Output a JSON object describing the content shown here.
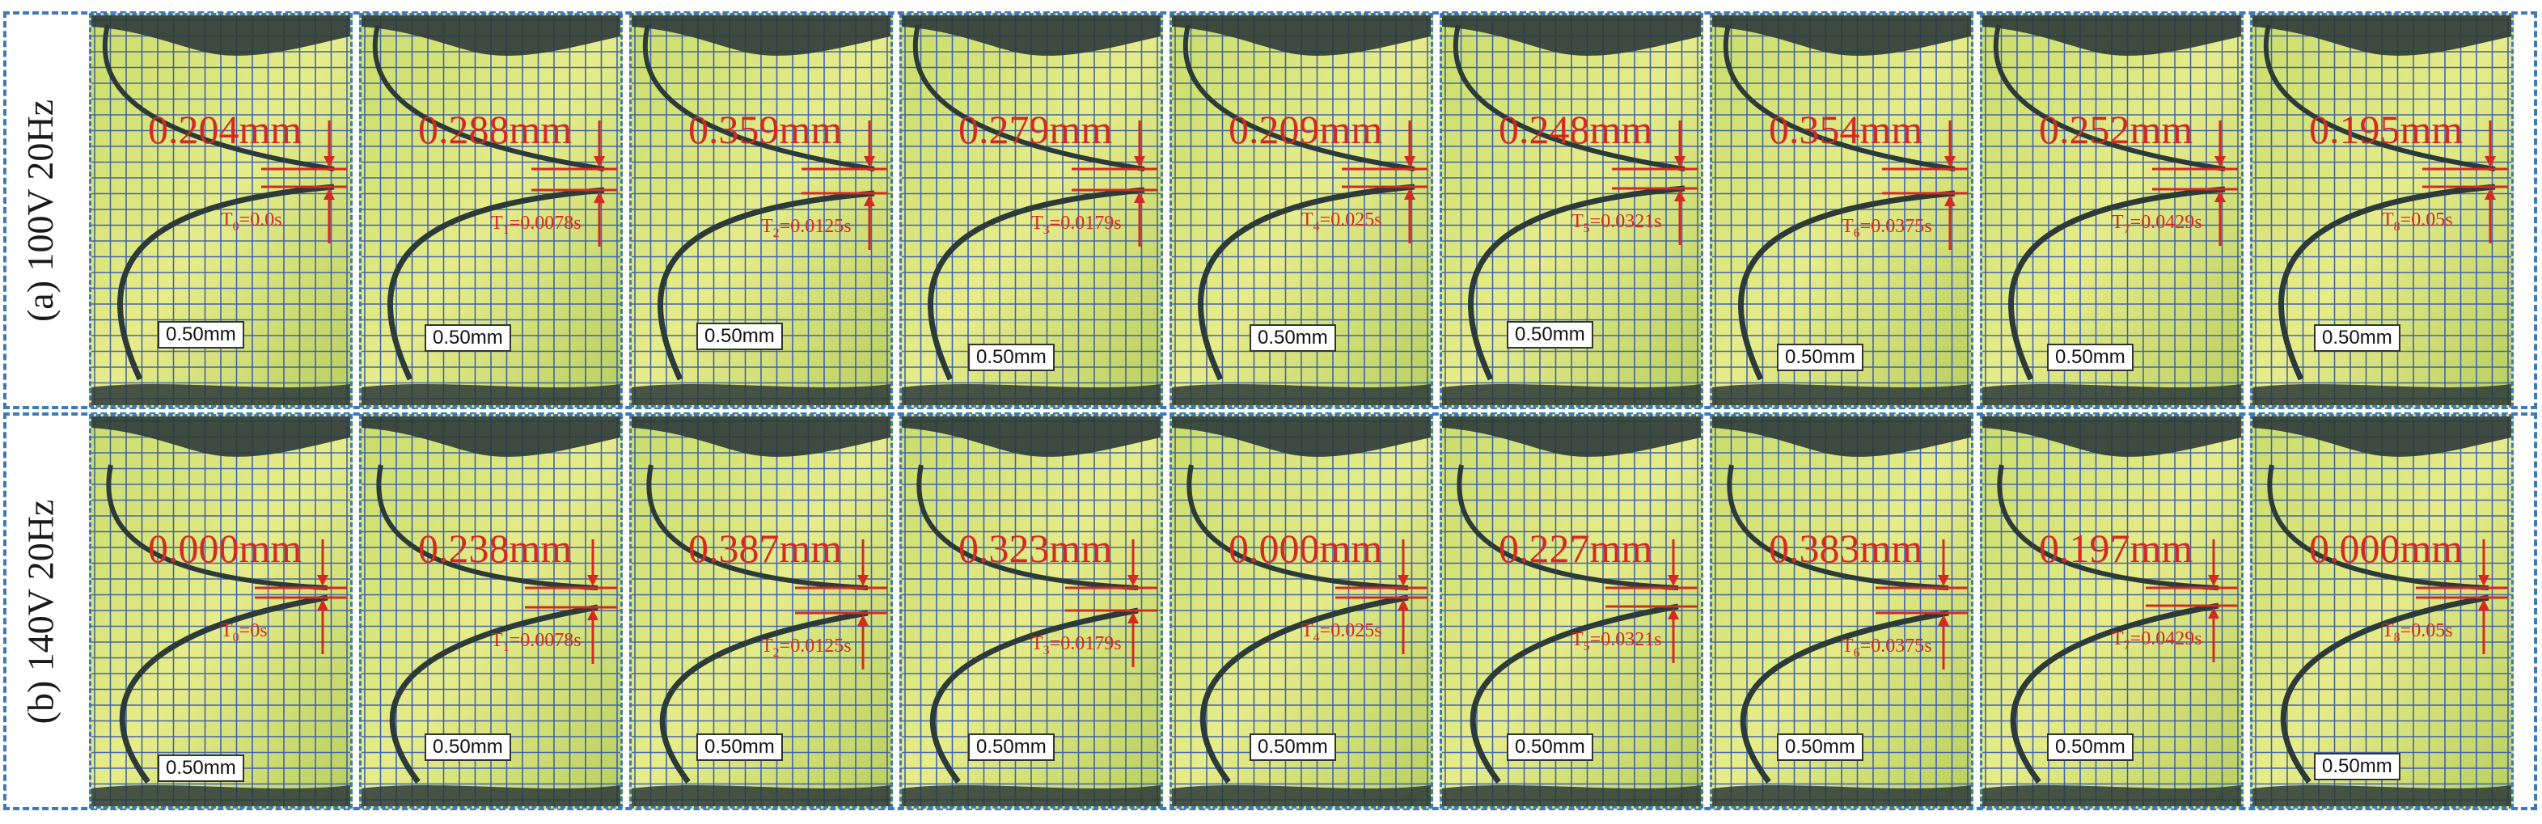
{
  "rows": [
    {
      "label": "(a) 100V 20Hz",
      "panels": [
        {
          "disp": "0.204mm",
          "t_sub": "0",
          "t_val": "=0.0s",
          "scale": "0.50mm",
          "gap": 0.204
        },
        {
          "disp": "0.288mm",
          "t_sub": "1",
          "t_val": "=0.0078s",
          "scale": "0.50mm",
          "gap": 0.288
        },
        {
          "disp": "0.359mm",
          "t_sub": "2",
          "t_val": "=0.0125s",
          "scale": "0.50mm",
          "gap": 0.359
        },
        {
          "disp": "0.279mm",
          "t_sub": "3",
          "t_val": "=0.0179s",
          "scale": "0.50mm",
          "gap": 0.279
        },
        {
          "disp": "0.209mm",
          "t_sub": "4",
          "t_val": "=0.025s",
          "scale": "0.50mm",
          "gap": 0.209
        },
        {
          "disp": "0.248mm",
          "t_sub": "5",
          "t_val": "=0.0321s",
          "scale": "0.50mm",
          "gap": 0.248
        },
        {
          "disp": "0.354mm",
          "t_sub": "6",
          "t_val": "=0.0375s",
          "scale": "0.50mm",
          "gap": 0.354
        },
        {
          "disp": "0.252mm",
          "t_sub": "7",
          "t_val": "=0.0429s",
          "scale": "0.50mm",
          "gap": 0.252
        },
        {
          "disp": "0.195mm",
          "t_sub": "8",
          "t_val": "=0.05s",
          "scale": "0.50mm",
          "gap": 0.195
        }
      ]
    },
    {
      "label": "(b) 140V 20Hz",
      "panels": [
        {
          "disp": "0.000mm",
          "t_sub": "0",
          "t_val": "=0s",
          "scale": "0.50mm",
          "gap": 0.0
        },
        {
          "disp": "0.238mm",
          "t_sub": "1",
          "t_val": "=0.0078s",
          "scale": "0.50mm",
          "gap": 0.238
        },
        {
          "disp": "0.387mm",
          "t_sub": "2",
          "t_val": "=0.0125s",
          "scale": "0.50mm",
          "gap": 0.387
        },
        {
          "disp": "0.323mm",
          "t_sub": "3",
          "t_val": "=0.0179s",
          "scale": "0.50mm",
          "gap": 0.323
        },
        {
          "disp": "0.000mm",
          "t_sub": "4",
          "t_val": "=0.025s",
          "scale": "0.50mm",
          "gap": 0.0
        },
        {
          "disp": "0.227mm",
          "t_sub": "5",
          "t_val": "=0.0321s",
          "scale": "0.50mm",
          "gap": 0.227
        },
        {
          "disp": "0.383mm",
          "t_sub": "6",
          "t_val": "=0.0375s",
          "scale": "0.50mm",
          "gap": 0.383
        },
        {
          "disp": "0.197mm",
          "t_sub": "7",
          "t_val": "=0.0429s",
          "scale": "0.50mm",
          "gap": 0.197
        },
        {
          "disp": "0.000mm",
          "t_sub": "8",
          "t_val": "=0.05s",
          "scale": "0.50mm",
          "gap": 0.0
        }
      ]
    }
  ],
  "colors": {
    "frame": "#3f7ab8",
    "grid": "#2a4fb0",
    "annotation": "#d42a24",
    "background": "#dfe87a",
    "membrane": "#2c3a3a"
  },
  "t_prefix": "T"
}
